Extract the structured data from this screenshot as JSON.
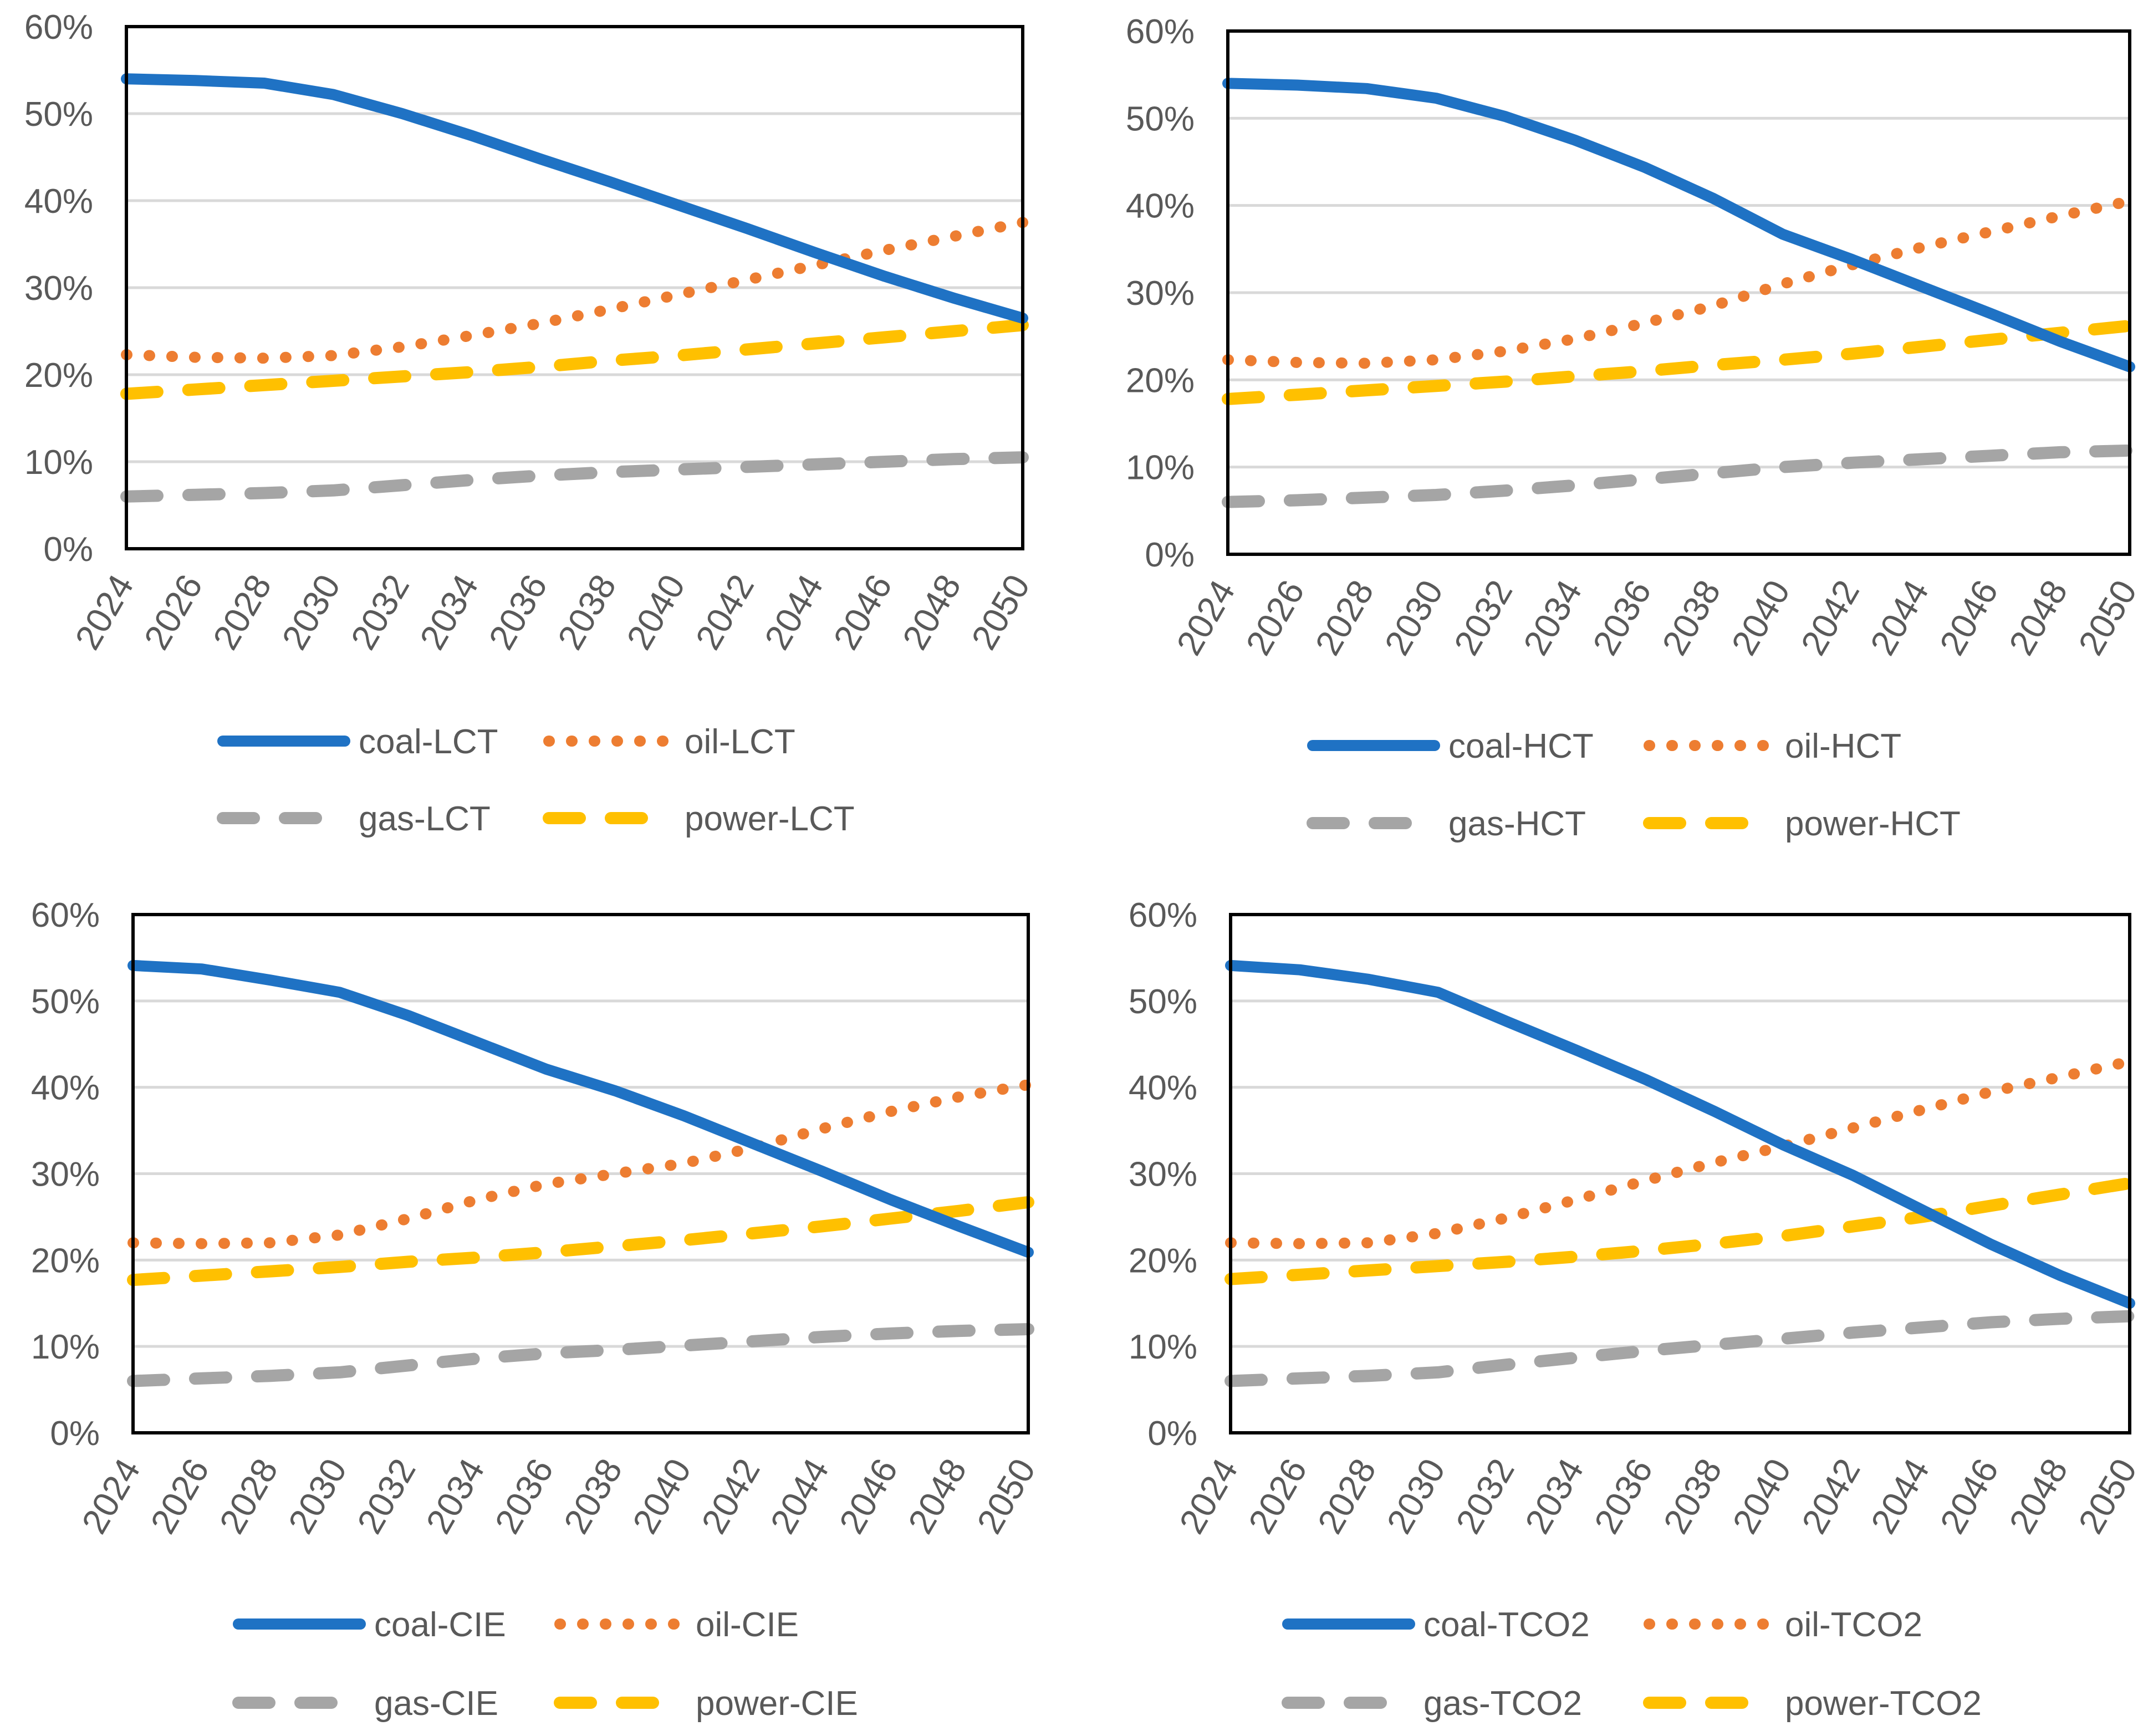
{
  "colors": {
    "coal": "#1f72c4",
    "oil": "#ed7d31",
    "gas": "#a5a5a5",
    "power": "#ffc000",
    "grid": "#d9d9d9",
    "text": "#595959",
    "frame": "#000000"
  },
  "chart_data": [
    {
      "type": "line",
      "title": "",
      "xlabel": "",
      "ylabel": "",
      "x_start": 2024,
      "x_end": 2050,
      "x_tick_labels": [
        "2024",
        "2026",
        "2028",
        "2030",
        "2032",
        "2034",
        "2036",
        "2038",
        "2040",
        "2042",
        "2044",
        "2046",
        "2048",
        "2050"
      ],
      "ylim": [
        0,
        60
      ],
      "y_tick_labels": [
        "0%",
        "10%",
        "20%",
        "30%",
        "40%",
        "50%",
        "60%"
      ],
      "grid": true,
      "legend_position": "bottom",
      "series": [
        {
          "key": "coal",
          "name": "coal-LCT",
          "style": "solid",
          "x": [
            2024,
            2026,
            2028,
            2030,
            2032,
            2034,
            2036,
            2038,
            2040,
            2042,
            2044,
            2046,
            2048,
            2050
          ],
          "values": [
            54.0,
            53.8,
            53.5,
            52.2,
            50.0,
            47.5,
            44.8,
            42.2,
            39.5,
            36.8,
            34.0,
            31.3,
            28.8,
            26.5
          ]
        },
        {
          "key": "oil",
          "name": "oil-LCT",
          "style": "dotted",
          "x": [
            2024,
            2026,
            2028,
            2030,
            2032,
            2034,
            2036,
            2038,
            2040,
            2042,
            2044,
            2046,
            2048,
            2050
          ],
          "values": [
            22.3,
            22.0,
            21.9,
            22.2,
            23.2,
            24.5,
            25.9,
            27.5,
            29.2,
            30.9,
            32.6,
            34.3,
            35.9,
            37.5
          ]
        },
        {
          "key": "gas",
          "name": "gas-LCT",
          "style": "dashed",
          "x": [
            2024,
            2026,
            2028,
            2030,
            2032,
            2034,
            2036,
            2038,
            2040,
            2042,
            2044,
            2046,
            2048,
            2050
          ],
          "values": [
            6.0,
            6.2,
            6.4,
            6.7,
            7.3,
            7.9,
            8.4,
            8.8,
            9.1,
            9.4,
            9.7,
            10.0,
            10.3,
            10.5
          ]
        },
        {
          "key": "power",
          "name": "power-LCT",
          "style": "dashed",
          "x": [
            2024,
            2026,
            2028,
            2030,
            2032,
            2034,
            2036,
            2038,
            2040,
            2042,
            2044,
            2046,
            2048,
            2050
          ],
          "values": [
            17.8,
            18.3,
            18.8,
            19.3,
            19.8,
            20.3,
            20.9,
            21.6,
            22.2,
            22.9,
            23.6,
            24.3,
            25.0,
            25.7
          ]
        }
      ]
    },
    {
      "type": "line",
      "title": "",
      "xlabel": "",
      "ylabel": "",
      "x_start": 2024,
      "x_end": 2050,
      "x_tick_labels": [
        "2024",
        "2026",
        "2028",
        "2030",
        "2032",
        "2034",
        "2036",
        "2038",
        "2040",
        "2042",
        "2044",
        "2046",
        "2048",
        "2050"
      ],
      "ylim": [
        0,
        60
      ],
      "y_tick_labels": [
        "0%",
        "10%",
        "20%",
        "30%",
        "40%",
        "50%",
        "60%"
      ],
      "grid": true,
      "legend_position": "bottom",
      "series": [
        {
          "key": "coal",
          "name": "coal-HCT",
          "style": "solid",
          "x": [
            2024,
            2026,
            2028,
            2030,
            2032,
            2034,
            2036,
            2038,
            2040,
            2042,
            2044,
            2046,
            2048,
            2050
          ],
          "values": [
            54.0,
            53.8,
            53.4,
            52.3,
            50.2,
            47.5,
            44.4,
            40.8,
            36.7,
            33.8,
            30.7,
            27.6,
            24.4,
            21.5
          ]
        },
        {
          "key": "oil",
          "name": "oil-HCT",
          "style": "dotted",
          "x": [
            2024,
            2026,
            2028,
            2030,
            2032,
            2034,
            2036,
            2038,
            2040,
            2042,
            2044,
            2046,
            2048,
            2050
          ],
          "values": [
            22.3,
            22.0,
            21.9,
            22.3,
            23.3,
            24.7,
            26.5,
            28.5,
            31.0,
            33.2,
            35.2,
            37.0,
            38.8,
            40.5
          ]
        },
        {
          "key": "gas",
          "name": "gas-HCT",
          "style": "dashed",
          "x": [
            2024,
            2026,
            2028,
            2030,
            2032,
            2034,
            2036,
            2038,
            2040,
            2042,
            2044,
            2046,
            2048,
            2050
          ],
          "values": [
            6.0,
            6.2,
            6.5,
            6.8,
            7.3,
            7.9,
            8.6,
            9.3,
            10.0,
            10.5,
            10.9,
            11.3,
            11.7,
            11.9
          ]
        },
        {
          "key": "power",
          "name": "power-HCT",
          "style": "dashed",
          "x": [
            2024,
            2026,
            2028,
            2030,
            2032,
            2034,
            2036,
            2038,
            2040,
            2042,
            2044,
            2046,
            2048,
            2050
          ],
          "values": [
            17.8,
            18.3,
            18.8,
            19.3,
            19.8,
            20.4,
            21.0,
            21.7,
            22.3,
            23.0,
            23.8,
            24.6,
            25.4,
            26.2
          ]
        }
      ]
    },
    {
      "type": "line",
      "title": "",
      "xlabel": "",
      "ylabel": "",
      "x_start": 2024,
      "x_end": 2050,
      "x_tick_labels": [
        "2024",
        "2026",
        "2028",
        "2030",
        "2032",
        "2034",
        "2036",
        "2038",
        "2040",
        "2042",
        "2044",
        "2046",
        "2048",
        "2050"
      ],
      "ylim": [
        0,
        60
      ],
      "y_tick_labels": [
        "0%",
        "10%",
        "20%",
        "30%",
        "40%",
        "50%",
        "60%"
      ],
      "grid": true,
      "legend_position": "bottom",
      "series": [
        {
          "key": "coal",
          "name": "coal-CIE",
          "style": "solid",
          "x": [
            2024,
            2026,
            2028,
            2030,
            2032,
            2034,
            2036,
            2038,
            2040,
            2042,
            2044,
            2046,
            2048,
            2050
          ],
          "values": [
            54.1,
            53.7,
            52.4,
            51.0,
            48.3,
            45.2,
            42.1,
            39.6,
            36.7,
            33.5,
            30.3,
            27.0,
            23.9,
            20.9
          ]
        },
        {
          "key": "oil",
          "name": "oil-CIE",
          "style": "dotted",
          "x": [
            2024,
            2026,
            2028,
            2030,
            2032,
            2034,
            2036,
            2038,
            2040,
            2042,
            2044,
            2046,
            2048,
            2050
          ],
          "values": [
            22.0,
            21.9,
            22.0,
            22.9,
            24.8,
            27.0,
            28.8,
            30.0,
            31.2,
            33.0,
            35.2,
            37.2,
            38.9,
            40.3
          ]
        },
        {
          "key": "gas",
          "name": "gas-CIE",
          "style": "dashed",
          "x": [
            2024,
            2026,
            2028,
            2030,
            2032,
            2034,
            2036,
            2038,
            2040,
            2042,
            2044,
            2046,
            2048,
            2050
          ],
          "values": [
            6.0,
            6.3,
            6.6,
            7.0,
            7.8,
            8.6,
            9.2,
            9.6,
            10.1,
            10.6,
            11.1,
            11.5,
            11.8,
            12.0
          ]
        },
        {
          "key": "power",
          "name": "power-CIE",
          "style": "dashed",
          "x": [
            2024,
            2026,
            2028,
            2030,
            2032,
            2034,
            2036,
            2038,
            2040,
            2042,
            2044,
            2046,
            2048,
            2050
          ],
          "values": [
            17.7,
            18.2,
            18.7,
            19.2,
            19.8,
            20.3,
            20.9,
            21.6,
            22.3,
            23.1,
            23.9,
            24.8,
            25.7,
            26.7
          ]
        }
      ]
    },
    {
      "type": "line",
      "title": "",
      "xlabel": "",
      "ylabel": "",
      "x_start": 2024,
      "x_end": 2050,
      "x_tick_labels": [
        "2024",
        "2026",
        "2028",
        "2030",
        "2032",
        "2034",
        "2036",
        "2038",
        "2040",
        "2042",
        "2044",
        "2046",
        "2048",
        "2050"
      ],
      "ylim": [
        0,
        60
      ],
      "y_tick_labels": [
        "0%",
        "10%",
        "20%",
        "30%",
        "40%",
        "50%",
        "60%"
      ],
      "grid": true,
      "legend_position": "bottom",
      "series": [
        {
          "key": "coal",
          "name": "coal-TCO2",
          "style": "solid",
          "x": [
            2024,
            2026,
            2028,
            2030,
            2032,
            2034,
            2036,
            2038,
            2040,
            2042,
            2044,
            2046,
            2048,
            2050
          ],
          "values": [
            54.1,
            53.6,
            52.5,
            51.0,
            47.6,
            44.3,
            40.9,
            37.2,
            33.3,
            29.8,
            25.8,
            21.8,
            18.2,
            15.0
          ]
        },
        {
          "key": "oil",
          "name": "oil-TCO2",
          "style": "dotted",
          "x": [
            2024,
            2026,
            2028,
            2030,
            2032,
            2034,
            2036,
            2038,
            2040,
            2042,
            2044,
            2046,
            2048,
            2050
          ],
          "values": [
            22.0,
            21.9,
            22.0,
            23.1,
            24.9,
            27.0,
            29.2,
            31.3,
            33.2,
            35.3,
            37.4,
            39.5,
            41.2,
            43.0
          ]
        },
        {
          "key": "gas",
          "name": "gas-TCO2",
          "style": "dashed",
          "x": [
            2024,
            2026,
            2028,
            2030,
            2032,
            2034,
            2036,
            2038,
            2040,
            2042,
            2044,
            2046,
            2048,
            2050
          ],
          "values": [
            6.0,
            6.3,
            6.6,
            7.0,
            7.9,
            8.7,
            9.5,
            10.2,
            10.9,
            11.6,
            12.2,
            12.8,
            13.2,
            13.5
          ]
        },
        {
          "key": "power",
          "name": "power-TCO2",
          "style": "dashed",
          "x": [
            2024,
            2026,
            2028,
            2030,
            2032,
            2034,
            2036,
            2038,
            2040,
            2042,
            2044,
            2046,
            2048,
            2050
          ],
          "values": [
            17.8,
            18.3,
            18.8,
            19.3,
            19.8,
            20.4,
            21.1,
            21.9,
            22.8,
            23.9,
            25.0,
            26.3,
            27.6,
            28.9
          ]
        }
      ]
    }
  ]
}
